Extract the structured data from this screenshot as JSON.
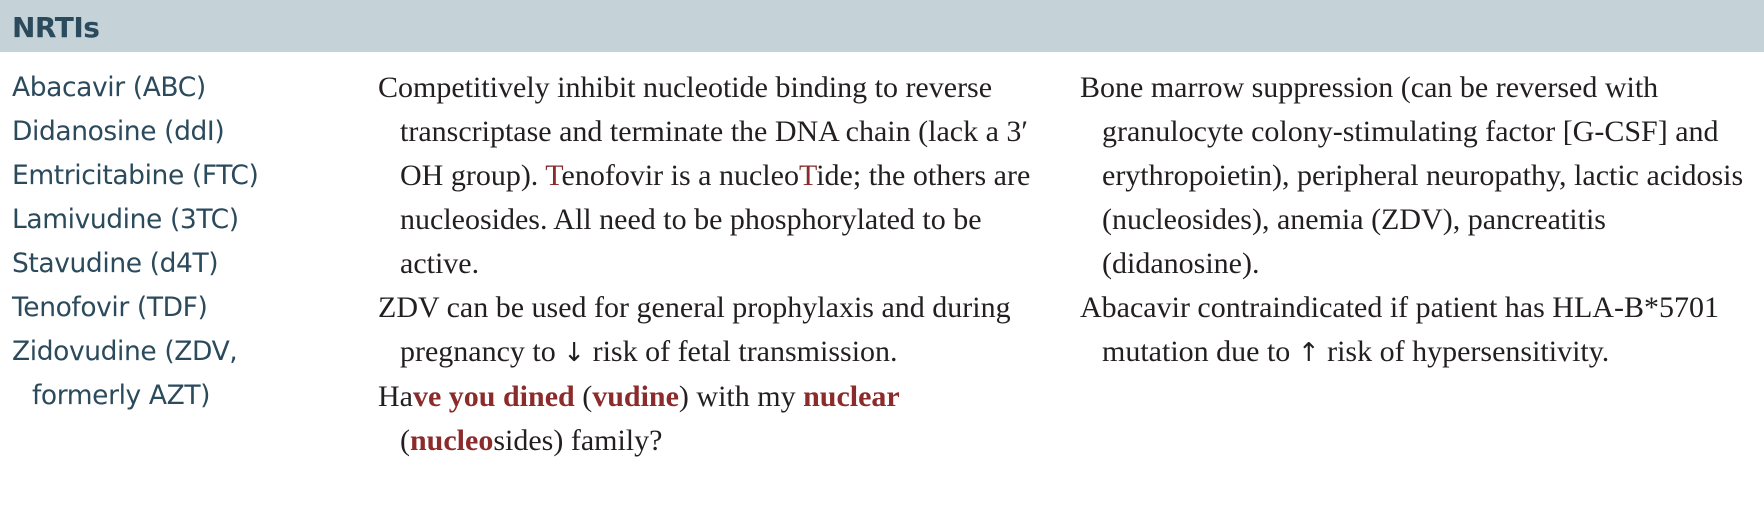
{
  "header": {
    "title": "NRTIs"
  },
  "drugs": [
    "Abacavir (ABC)",
    "Didanosine (ddI)",
    "Emtricitabine (FTC)",
    "Lamivudine (3TC)",
    "Stavudine (d4T)",
    "Tenofovir (TDF)",
    "Zidovudine (ZDV, formerly AZT)"
  ],
  "mechanism": {
    "p1_part1": "Competitively inhibit nucleotide binding to reverse transcriptase and terminate the DNA chain (lack a 3′ OH group). ",
    "p1_T1": "T",
    "p1_part2": "enofovir is a nucleo",
    "p1_T2": "T",
    "p1_part3": "ide; the others are nucleosides. All need to be phosphorylated to be active.",
    "p2_part1": "ZDV can be used for general prophylaxis and during pregnancy to ",
    "p2_arrow": "↓",
    "p2_part2": " risk of fetal transmission.",
    "m_ha": "Ha",
    "m_ve": "ve you dined",
    "m_paren1_open": " (",
    "m_vudine": "vudine",
    "m_paren1_close": ") with my ",
    "m_nuclear": "nuclear",
    "m_paren2_open": " (",
    "m_nucleo": "nucleo",
    "m_end": "sides) family?"
  },
  "toxicity": {
    "p1": "Bone marrow suppression (can be reversed with granulocyte colony-stimulating factor [G-CSF] and erythropoietin), peripheral neuropathy, lactic acidosis (nucleosides), anemia (ZDV), pancreatitis (didanosine).",
    "p2_part1": "Abacavir contraindicated if patient has HLA-B*5701 mutation due to ",
    "p2_arrow": "↑",
    "p2_part2": " risk of hypersensitivity."
  },
  "colors": {
    "header_bg": "#c5d3d8",
    "drug_text": "#2b4a5c",
    "accent_red": "#8c2b2b"
  }
}
